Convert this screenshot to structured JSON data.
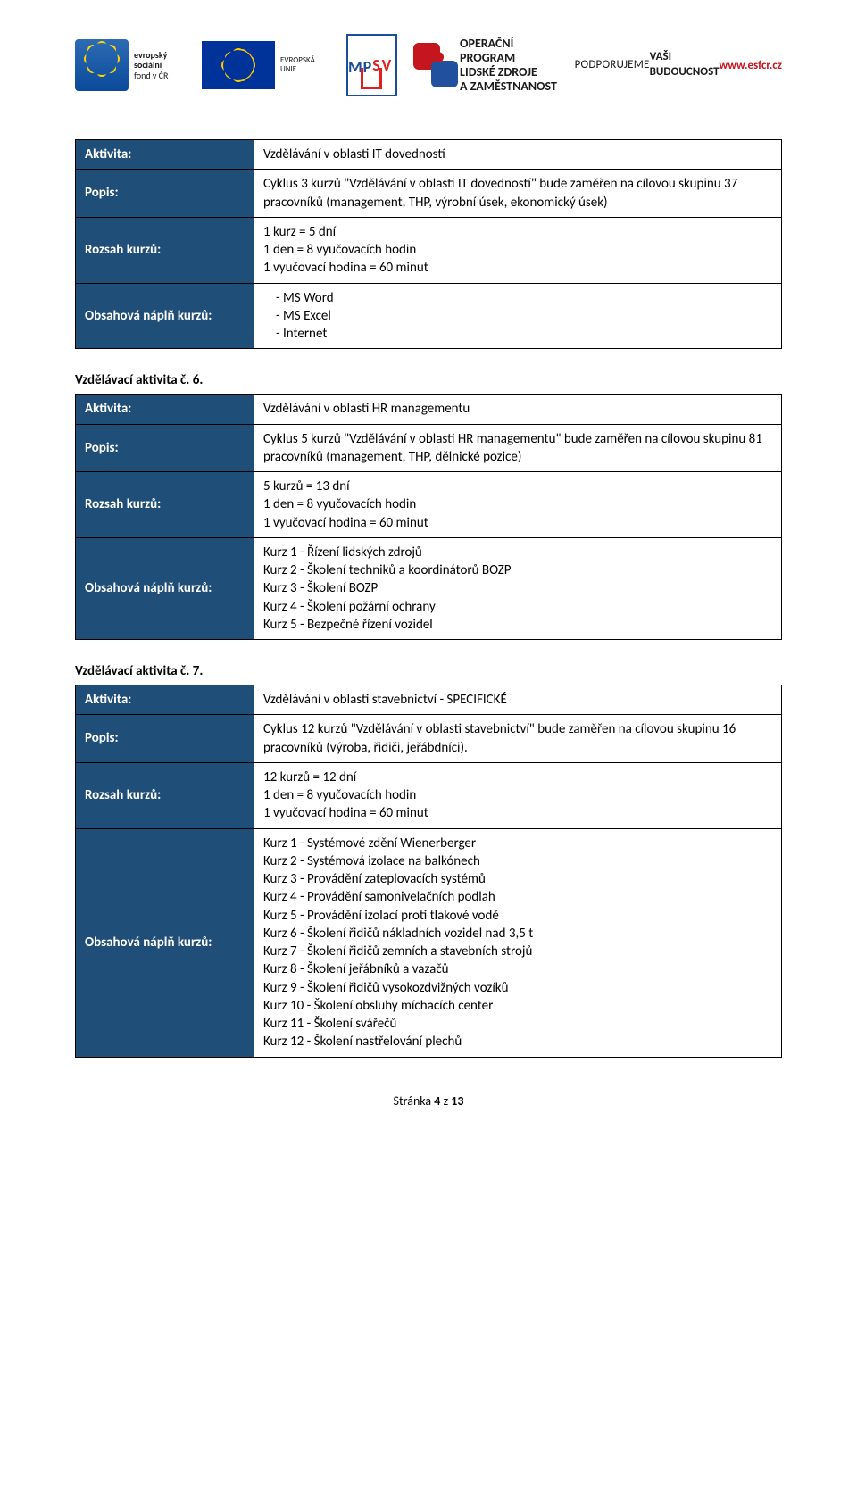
{
  "banner": {
    "esf": {
      "line1": "evropský",
      "line2": "sociální",
      "line3": "fond v ČR",
      "eu_label": "EVROPSKÁ UNIE"
    },
    "mpsv": {
      "top": "MP",
      "bottom": "SV"
    },
    "oplz": {
      "line1": "OPERAČNÍ PROGRAM",
      "line2": "LIDSKÉ ZDROJE",
      "line3": "A ZAMĚSTNANOST"
    },
    "support": {
      "line1": "PODPORUJEME",
      "line2": "VAŠI BUDOUCNOST",
      "url": "www.esfcr.cz"
    }
  },
  "labels": {
    "aktivita": "Aktivita:",
    "popis": "Popis:",
    "rozsah": "Rozsah kurzů:",
    "obsah": "Obsahová náplň kurzů:"
  },
  "section5": {
    "aktivita": "Vzdělávání v oblasti IT dovedností",
    "popis": "Cyklus 3 kurzů \"Vzdělávání v oblasti IT dovedností\" bude zaměřen na cílovou skupinu 37 pracovníků (management, THP, výrobní úsek, ekonomický úsek)",
    "rozsah_l1": "1 kurz = 5 dní",
    "rozsah_l2": "1 den = 8 vyučovacích hodin",
    "rozsah_l3": "1 vyučovací hodina = 60 minut",
    "obsah": [
      "MS Word",
      "MS Excel",
      "Internet"
    ]
  },
  "section6": {
    "heading": "Vzdělávací aktivita č. 6.",
    "aktivita": "Vzdělávání v oblasti HR managementu",
    "popis": "Cyklus 5 kurzů \"Vzdělávání v oblasti HR managementu\" bude zaměřen na cílovou skupinu 81 pracovníků (management, THP, dělnické pozice)",
    "rozsah_l1": "5 kurzů = 13 dní",
    "rozsah_l2": "1 den = 8 vyučovacích hodin",
    "rozsah_l3": "1 vyučovací hodina = 60 minut",
    "obsah": [
      "Kurz 1 - Řízení lidských zdrojů",
      "Kurz 2 - Školení techniků a koordinátorů BOZP",
      "Kurz 3 - Školení BOZP",
      "Kurz 4 - Školení požární ochrany",
      "Kurz 5 - Bezpečné řízení vozidel"
    ]
  },
  "section7": {
    "heading": "Vzdělávací aktivita č. 7.",
    "aktivita": "Vzdělávání v oblasti stavebnictví - SPECIFICKÉ",
    "popis": "Cyklus 12 kurzů \"Vzdělávání v oblasti stavebnictví\" bude zaměřen na cílovou skupinu 16 pracovníků (výroba, řidiči, jeřábdníci).",
    "rozsah_l1": "12 kurzů = 12 dní",
    "rozsah_l2": "1 den = 8 vyučovacích hodin",
    "rozsah_l3": "1 vyučovací hodina = 60 minut",
    "obsah": [
      "Kurz 1 - Systémové zdění Wienerberger",
      "Kurz 2 - Systémová izolace na balkónech",
      "Kurz 3 - Provádění zateplovacích systémů",
      "Kurz 4 - Provádění samonivelačních podlah",
      "Kurz 5 - Provádění izolací proti tlakové vodě",
      "Kurz 6 - Školení řidičů nákladních vozidel nad 3,5 t",
      "Kurz 7 - Školení řidičů zemních a stavebních strojů",
      "Kurz 8 - Školení jeřábníků a vazačů",
      "Kurz 9 - Školení řidičů vysokozdvižných vozíků",
      "Kurz 10 - Školení obsluhy míchacích center",
      "Kurz 11 - Školení svářečů",
      "Kurz 12 - Školení nastřelování plechů"
    ]
  },
  "footer": {
    "prefix": "Stránka ",
    "page": "4",
    "of": " z ",
    "total": "13"
  },
  "colors": {
    "table_header_bg": "#1f4e79",
    "table_header_fg": "#ffffff",
    "border": "#000000",
    "red": "#c4161c",
    "blue": "#20509e",
    "eu_blue": "#003399"
  }
}
